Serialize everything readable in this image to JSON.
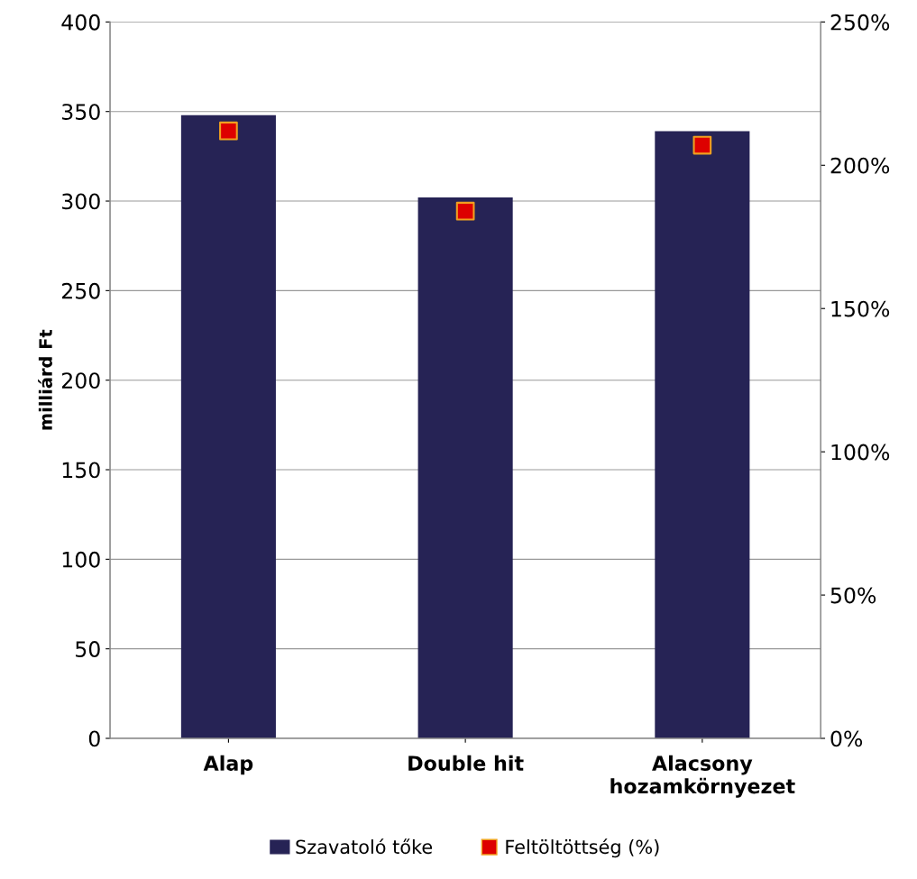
{
  "chart_data": {
    "type": "bar",
    "ylabel": "milliárd Ft",
    "categories": [
      "Alap",
      "Double hit",
      "Alacsony\nhozamkörnyezet"
    ],
    "series": [
      {
        "name": "Szavatoló tőke",
        "color": "#262355",
        "values": [
          348,
          302,
          339
        ]
      },
      {
        "name": "Feltöltöttség (%)",
        "type": "scatter",
        "axis": "y2",
        "color": "#dd0000",
        "values": [
          212,
          184,
          207
        ]
      }
    ],
    "ylim": [
      0,
      400
    ],
    "yticks": [
      0,
      50,
      100,
      150,
      200,
      250,
      300,
      350,
      400
    ],
    "y2lim": [
      0,
      250
    ],
    "y2ticks": [
      {
        "value": 0,
        "label": "0%"
      },
      {
        "value": 50,
        "label": "50%"
      },
      {
        "value": 100,
        "label": "100%"
      },
      {
        "value": 150,
        "label": "150%"
      },
      {
        "value": 200,
        "label": "200%"
      },
      {
        "value": 250,
        "label": "250%"
      }
    ],
    "grid": "y",
    "legend": "bottom",
    "marker": "square"
  }
}
